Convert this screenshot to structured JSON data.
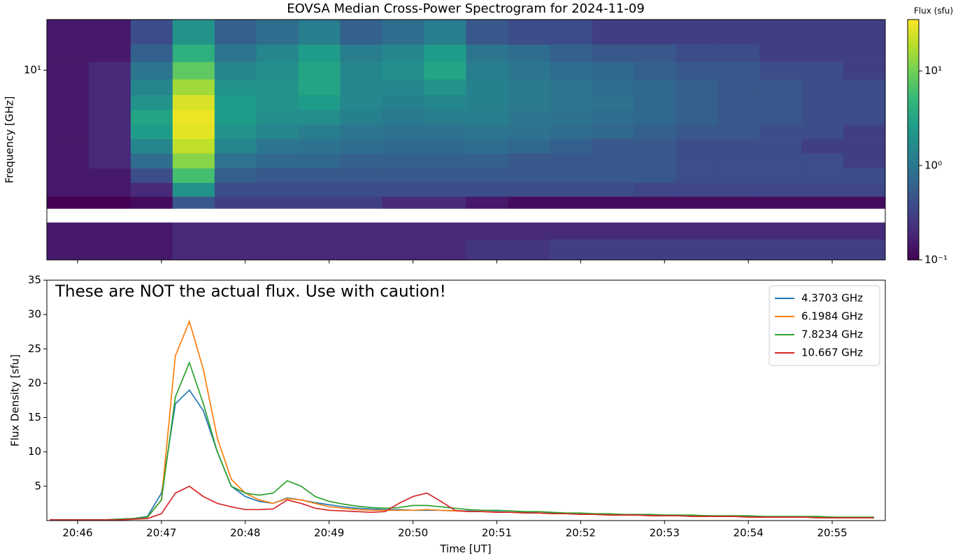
{
  "chart_data": [
    {
      "type": "heatmap",
      "title": "EOVSA Median Cross-Power Spectrogram for 2024-11-09",
      "y_label": "Frequency [GHz]",
      "xbins": [
        "20:45:38",
        "20:46:08",
        "20:46:38",
        "20:47:08",
        "20:47:38",
        "20:48:08",
        "20:48:38",
        "20:49:08",
        "20:49:38",
        "20:50:08",
        "20:50:38",
        "20:51:08",
        "20:51:38",
        "20:52:08",
        "20:52:38",
        "20:53:08",
        "20:53:38",
        "20:54:08",
        "20:54:38",
        "20:55:08",
        "20:55:38"
      ],
      "ybins": [
        1.1,
        1.4,
        1.7,
        2.0,
        2.3,
        2.7,
        3.2,
        3.8,
        4.5,
        5.3,
        6.3,
        7.5,
        9,
        11,
        13.5,
        18
      ],
      "xlim": [
        "20:45:38",
        "20:55:38"
      ],
      "ylim": [
        1.1,
        18
      ],
      "yscale": "log",
      "yticks": [
        {
          "value": 10,
          "label": "10¹"
        }
      ],
      "colormap": "viridis",
      "colorbar": {
        "label": "Flux (sfu)",
        "zlim": [
          0.1,
          35
        ],
        "scale": "log",
        "ticks": [
          {
            "value": 0.1,
            "label": "10⁻¹"
          },
          {
            "value": 1,
            "label": "10⁰"
          },
          {
            "value": 10,
            "label": "10¹"
          }
        ]
      },
      "z": [
        [
          0.15,
          0.15,
          0.15,
          0.2,
          0.2,
          0.2,
          0.2,
          0.2,
          0.2,
          0.2,
          0.25,
          0.25,
          0.3,
          0.3,
          0.3,
          0.3,
          0.3,
          0.3,
          0.3,
          0.3
        ],
        [
          0.15,
          0.15,
          0.15,
          0.2,
          0.2,
          0.2,
          0.2,
          0.2,
          0.2,
          0.2,
          0.2,
          0.2,
          0.2,
          0.2,
          0.2,
          0.2,
          0.2,
          0.2,
          0.2,
          0.2
        ],
        [
          null,
          null,
          null,
          null,
          null,
          null,
          null,
          null,
          null,
          null,
          null,
          null,
          null,
          null,
          null,
          null,
          null,
          null,
          null,
          null
        ],
        [
          0.1,
          0.1,
          0.12,
          0.5,
          0.3,
          0.3,
          0.3,
          0.3,
          0.2,
          0.2,
          0.15,
          0.12,
          0.12,
          0.12,
          0.12,
          0.12,
          0.12,
          0.12,
          0.12,
          0.12
        ],
        [
          0.15,
          0.15,
          0.2,
          2,
          0.4,
          0.4,
          0.4,
          0.4,
          0.4,
          0.4,
          0.4,
          0.4,
          0.4,
          0.4,
          0.35,
          0.35,
          0.35,
          0.35,
          0.35,
          0.35
        ],
        [
          0.15,
          0.15,
          0.4,
          6,
          0.6,
          0.5,
          0.5,
          0.5,
          0.5,
          0.5,
          0.5,
          0.5,
          0.5,
          0.5,
          0.5,
          0.4,
          0.4,
          0.4,
          0.4,
          0.4
        ],
        [
          0.15,
          0.2,
          0.8,
          12,
          0.9,
          0.7,
          0.7,
          0.6,
          0.6,
          0.6,
          0.6,
          0.5,
          0.5,
          0.5,
          0.5,
          0.4,
          0.4,
          0.4,
          0.4,
          0.3
        ],
        [
          0.15,
          0.2,
          1.5,
          20,
          1.5,
          1,
          0.9,
          0.8,
          0.7,
          0.7,
          0.8,
          0.7,
          0.6,
          0.5,
          0.5,
          0.4,
          0.4,
          0.4,
          0.3,
          0.3
        ],
        [
          0.15,
          0.2,
          2.5,
          28,
          2,
          1.5,
          1.2,
          1,
          0.9,
          0.9,
          1,
          0.9,
          0.8,
          0.7,
          0.6,
          0.5,
          0.5,
          0.4,
          0.4,
          0.3
        ],
        [
          0.15,
          0.2,
          3,
          30,
          2.5,
          1.8,
          1.8,
          1.3,
          1.1,
          1.2,
          1.2,
          1,
          0.9,
          0.8,
          0.7,
          0.6,
          0.5,
          0.5,
          0.4,
          0.4
        ],
        [
          0.15,
          0.2,
          2,
          25,
          2.5,
          2,
          2.5,
          1.5,
          1.3,
          1.5,
          1.3,
          1.1,
          1,
          0.9,
          0.7,
          0.6,
          0.5,
          0.5,
          0.4,
          0.4
        ],
        [
          0.15,
          0.2,
          1.5,
          15,
          2,
          2,
          3,
          1.5,
          1.5,
          2,
          1.3,
          1.1,
          1,
          0.8,
          0.7,
          0.6,
          0.5,
          0.5,
          0.4,
          0.4
        ],
        [
          0.15,
          0.2,
          1,
          8,
          1.5,
          1.8,
          3,
          1.5,
          1.8,
          3,
          1.2,
          1,
          0.8,
          0.7,
          0.6,
          0.5,
          0.5,
          0.4,
          0.4,
          0.3
        ],
        [
          0.15,
          0.15,
          0.6,
          4,
          1,
          1.5,
          2.5,
          1.2,
          1.5,
          2.5,
          1,
          0.8,
          0.6,
          0.5,
          0.5,
          0.4,
          0.4,
          0.3,
          0.3,
          0.3
        ],
        [
          0.15,
          0.15,
          0.4,
          2,
          0.6,
          0.8,
          1.2,
          0.6,
          0.8,
          1.2,
          0.5,
          0.4,
          0.4,
          0.3,
          0.3,
          0.3,
          0.3,
          0.3,
          0.3,
          0.3
        ]
      ]
    },
    {
      "type": "line",
      "x_label": "Time [UT]",
      "y_label": "Flux Density [sfu]",
      "annotation": "These are NOT the actual flux. Use with caution!",
      "x": [
        "20:45:40",
        "20:45:50",
        "20:46:00",
        "20:46:10",
        "20:46:20",
        "20:46:30",
        "20:46:40",
        "20:46:50",
        "20:47:00",
        "20:47:10",
        "20:47:20",
        "20:47:30",
        "20:47:40",
        "20:47:50",
        "20:48:00",
        "20:48:10",
        "20:48:20",
        "20:48:30",
        "20:48:40",
        "20:48:50",
        "20:49:00",
        "20:49:10",
        "20:49:20",
        "20:49:30",
        "20:49:40",
        "20:49:50",
        "20:50:00",
        "20:50:10",
        "20:50:20",
        "20:50:30",
        "20:50:40",
        "20:50:50",
        "20:51:00",
        "20:51:10",
        "20:51:20",
        "20:51:30",
        "20:51:40",
        "20:51:50",
        "20:52:00",
        "20:52:10",
        "20:52:20",
        "20:52:30",
        "20:52:40",
        "20:52:50",
        "20:53:00",
        "20:53:10",
        "20:53:20",
        "20:53:30",
        "20:53:40",
        "20:53:50",
        "20:54:00",
        "20:54:10",
        "20:54:20",
        "20:54:30",
        "20:54:40",
        "20:54:50",
        "20:55:00",
        "20:55:10",
        "20:55:20",
        "20:55:30"
      ],
      "xlim": [
        "20:45:38",
        "20:55:38"
      ],
      "ylim": [
        0,
        35
      ],
      "xticks": [
        "20:46",
        "20:47",
        "20:48",
        "20:49",
        "20:50",
        "20:51",
        "20:52",
        "20:53",
        "20:54",
        "20:55"
      ],
      "yticks": [
        5,
        10,
        15,
        20,
        25,
        30,
        35
      ],
      "legend": "upper right",
      "series": [
        {
          "name": "4.3703 GHz",
          "color": "#1f77b4",
          "values": [
            0.1,
            0.1,
            0.1,
            0.1,
            0.1,
            0.2,
            0.3,
            0.6,
            4,
            17,
            19,
            16,
            10,
            5,
            3.5,
            2.8,
            2.5,
            3.3,
            3,
            2.6,
            2.3,
            2,
            1.8,
            1.7,
            1.6,
            1.6,
            1.5,
            1.5,
            1.5,
            1.4,
            1.4,
            1.3,
            1.3,
            1.2,
            1.2,
            1.1,
            1.1,
            1.0,
            1.0,
            0.9,
            0.9,
            0.9,
            0.8,
            0.8,
            0.8,
            0.7,
            0.7,
            0.7,
            0.6,
            0.6,
            0.6,
            0.6,
            0.5,
            0.5,
            0.5,
            0.5,
            0.5,
            0.4,
            0.4,
            0.4
          ]
        },
        {
          "name": "6.1984 GHz",
          "color": "#ff7f0e",
          "values": [
            0.1,
            0.1,
            0.1,
            0.1,
            0.1,
            0.2,
            0.3,
            0.5,
            3,
            24,
            29,
            22,
            12,
            6,
            4,
            3,
            2.5,
            3.2,
            3,
            2.5,
            2,
            1.8,
            1.6,
            1.5,
            1.5,
            1.5,
            1.5,
            1.6,
            1.5,
            1.4,
            1.3,
            1.3,
            1.2,
            1.2,
            1.1,
            1.1,
            1.0,
            1.0,
            0.9,
            0.9,
            0.9,
            0.8,
            0.8,
            0.8,
            0.7,
            0.7,
            0.7,
            0.7,
            0.6,
            0.6,
            0.6,
            0.6,
            0.5,
            0.5,
            0.5,
            0.5,
            0.5,
            0.4,
            0.4,
            0.4
          ]
        },
        {
          "name": "7.8234 GHz",
          "color": "#2ca02c",
          "values": [
            0.1,
            0.1,
            0.1,
            0.1,
            0.1,
            0.2,
            0.3,
            0.5,
            3,
            18,
            23,
            17,
            10,
            5,
            4,
            3.7,
            4,
            5.8,
            5,
            3.5,
            2.8,
            2.4,
            2.1,
            1.9,
            1.8,
            1.9,
            2.2,
            2.2,
            2,
            1.8,
            1.6,
            1.5,
            1.5,
            1.4,
            1.3,
            1.3,
            1.2,
            1.1,
            1.1,
            1.0,
            1.0,
            0.9,
            0.9,
            0.9,
            0.8,
            0.8,
            0.8,
            0.7,
            0.7,
            0.7,
            0.7,
            0.6,
            0.6,
            0.6,
            0.6,
            0.6,
            0.5,
            0.5,
            0.5,
            0.5
          ]
        },
        {
          "name": "10.667 GHz",
          "color": "#d62728",
          "values": [
            0.1,
            0.1,
            0.1,
            0.1,
            0.1,
            0.1,
            0.2,
            0.3,
            1,
            4,
            5,
            3.5,
            2.5,
            2,
            1.6,
            1.6,
            1.7,
            3,
            2.5,
            1.8,
            1.5,
            1.4,
            1.3,
            1.2,
            1.3,
            2.5,
            3.5,
            4,
            2.8,
            1.5,
            1.3,
            1.3,
            1.2,
            1.2,
            1.1,
            1.1,
            1.0,
            1.0,
            0.9,
            0.9,
            0.8,
            0.8,
            0.8,
            0.7,
            0.7,
            0.7,
            0.6,
            0.6,
            0.6,
            0.6,
            0.5,
            0.5,
            0.5,
            0.5,
            0.5,
            0.4,
            0.4,
            0.4,
            0.4,
            0.4
          ]
        }
      ]
    }
  ]
}
